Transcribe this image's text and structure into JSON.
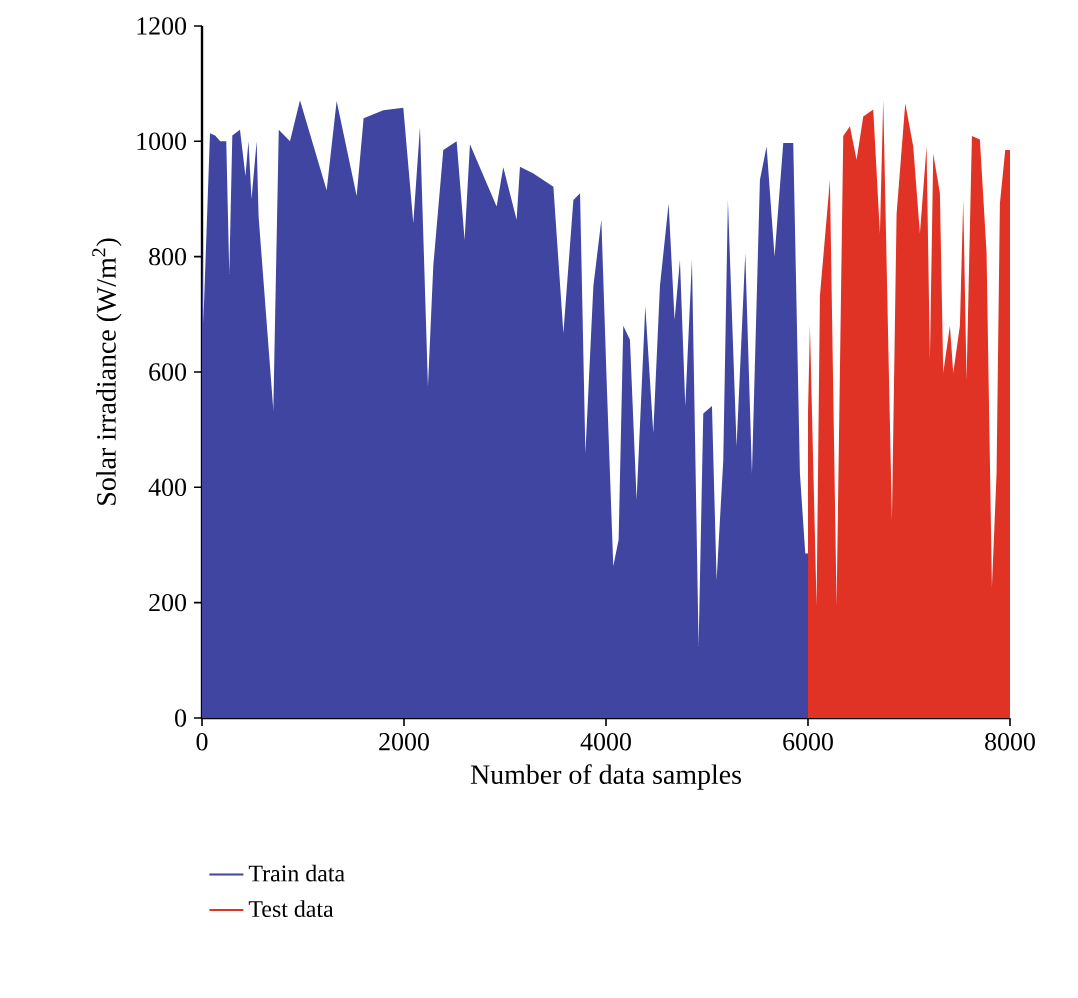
{
  "chart_data": {
    "type": "area",
    "xlabel": "Number of data samples",
    "ylabel": "Solar irradiance (W/m$^{2}$)",
    "xlim": [
      0,
      8000
    ],
    "ylim": [
      0,
      1200
    ],
    "xticks": [
      0,
      2000,
      4000,
      6000,
      8000
    ],
    "yticks": [
      0,
      200,
      400,
      600,
      800,
      1000,
      1200
    ],
    "legend": "bottom",
    "series": [
      {
        "name": "Train data",
        "color": "#3f45a0",
        "x": [
          0,
          13,
          79,
          130,
          180,
          240,
          270,
          300,
          376,
          430,
          460,
          490,
          541,
          560,
          706,
          760,
          871,
          970,
          1234,
          1333,
          1531,
          1600,
          1795,
          1993,
          2092,
          2158,
          2237,
          2290,
          2389,
          2521,
          2600,
          2653,
          2917,
          2983,
          3115,
          3148,
          3281,
          3479,
          3578,
          3677,
          3743,
          3796,
          3875,
          3954,
          4006,
          4072,
          4125,
          4171,
          4237,
          4303,
          4389,
          4468,
          4534,
          4620,
          4679,
          4732,
          4785,
          4851,
          4917,
          4963,
          5049,
          5095,
          5161,
          5207,
          5293,
          5379,
          5445,
          5524,
          5590,
          5669,
          5755,
          5854,
          5920,
          5973,
          6000
        ],
        "values": [
          830,
          684,
          1014,
          1010,
          1000,
          1000,
          770,
          1010,
          1020,
          940,
          1000,
          900,
          1000,
          870,
          534,
          1020,
          1000,
          1071,
          915,
          1070,
          905,
          1040,
          1054,
          1058,
          858,
          1025,
          575,
          784,
          985,
          1000,
          829,
          995,
          887,
          955,
          864,
          956,
          944,
          921,
          667,
          898,
          910,
          459,
          749,
          864,
          586,
          263,
          309,
          680,
          656,
          378,
          714,
          494,
          749,
          892,
          690,
          794,
          541,
          794,
          125,
          528,
          541,
          239,
          447,
          898,
          471,
          806,
          424,
          933,
          991,
          800,
          997,
          997,
          424,
          285,
          285
        ]
      },
      {
        "name": "Test data",
        "color": "#e03325",
        "x": [
          6000,
          6019,
          6085,
          6118,
          6217,
          6283,
          6349,
          6415,
          6481,
          6547,
          6646,
          6712,
          6745,
          6811,
          6831,
          6877,
          6963,
          7042,
          7108,
          7174,
          7207,
          7240,
          7306,
          7339,
          7405,
          7438,
          7504,
          7537,
          7570,
          7623,
          7702,
          7768,
          7821,
          7867,
          7900,
          7953,
          8000
        ],
        "values": [
          530,
          680,
          194,
          732,
          933,
          194,
          1009,
          1026,
          968,
          1043,
          1055,
          840,
          1072,
          511,
          343,
          874,
          1066,
          991,
          840,
          991,
          621,
          979,
          910,
          598,
          680,
          598,
          680,
          898,
          586,
          1009,
          1003,
          806,
          227,
          424,
          892,
          985,
          985
        ]
      }
    ]
  }
}
